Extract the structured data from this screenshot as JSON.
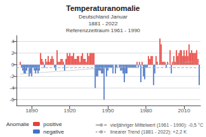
{
  "chart_data": {
    "type": "bar",
    "title": "Temperaturanomalie",
    "subtitle": [
      "Deutschland Januar",
      "1881 - 2022",
      "Referenzzeitraum 1961 - 1990"
    ],
    "legend_title": "Anomalie",
    "legend": "bottom",
    "grid": true,
    "x": [
      1881,
      1882,
      1883,
      1884,
      1885,
      1886,
      1887,
      1888,
      1889,
      1890,
      1891,
      1892,
      1893,
      1894,
      1895,
      1896,
      1897,
      1898,
      1899,
      1900,
      1901,
      1902,
      1903,
      1904,
      1905,
      1906,
      1907,
      1908,
      1909,
      1910,
      1911,
      1912,
      1913,
      1914,
      1915,
      1916,
      1917,
      1918,
      1919,
      1920,
      1921,
      1922,
      1923,
      1924,
      1925,
      1926,
      1927,
      1928,
      1929,
      1930,
      1931,
      1932,
      1933,
      1934,
      1935,
      1936,
      1937,
      1938,
      1939,
      1940,
      1941,
      1942,
      1943,
      1944,
      1945,
      1946,
      1947,
      1948,
      1949,
      1950,
      1951,
      1952,
      1953,
      1954,
      1955,
      1956,
      1957,
      1958,
      1959,
      1960,
      1961,
      1962,
      1963,
      1964,
      1965,
      1966,
      1967,
      1968,
      1969,
      1970,
      1971,
      1972,
      1973,
      1974,
      1975,
      1976,
      1977,
      1978,
      1979,
      1980,
      1981,
      1982,
      1983,
      1984,
      1985,
      1986,
      1987,
      1988,
      1989,
      1990,
      1991,
      1992,
      1993,
      1994,
      1995,
      1996,
      1997,
      1998,
      1999,
      2000,
      2001,
      2002,
      2003,
      2004,
      2005,
      2006,
      2007,
      2008,
      2009,
      2010,
      2011,
      2012,
      2013,
      2014,
      2015,
      2016,
      2017,
      2018,
      2019,
      2020,
      2021,
      2022
    ],
    "series": [
      {
        "name": "positive",
        "type": "bar",
        "color": "#e8413a",
        "values": [
          0.5,
          null,
          null,
          null,
          null,
          null,
          null,
          null,
          null,
          null,
          null,
          null,
          null,
          null,
          null,
          null,
          2.0,
          1.0,
          0.5,
          null,
          1.0,
          0.5,
          1.5,
          0.5,
          1.0,
          1.5,
          1.0,
          null,
          null,
          2.5,
          0.5,
          0.5,
          1.0,
          1.0,
          0.5,
          null,
          1.0,
          2.0,
          1.5,
          2.0,
          1.5,
          1.5,
          2.0,
          1.0,
          1.0,
          1.5,
          1.5,
          0.5,
          1.5,
          2.0,
          1.0,
          1.0,
          0.5,
          2.0,
          1.5,
          2.0,
          2.0,
          2.0,
          2.0,
          null,
          null,
          null,
          null,
          null,
          null,
          null,
          null,
          null,
          null,
          null,
          null,
          null,
          null,
          null,
          0.0,
          null,
          null,
          0.0,
          null,
          null,
          null,
          null,
          null,
          null,
          null,
          null,
          null,
          null,
          null,
          null,
          null,
          null,
          0.5,
          null,
          0.5,
          null,
          0.5,
          null,
          null,
          null,
          null,
          1.5,
          1.0,
          1.5,
          1.5,
          null,
          null,
          1.5,
          0.5,
          0.0,
          4.5,
          3.5,
          0.5,
          0.5,
          0.5,
          null,
          0.5,
          0.0,
          2.5,
          null,
          0.5,
          1.5,
          0.5,
          2.5,
          1.5,
          2.0,
          2.5,
          2.5,
          1.5,
          2.5,
          1.5,
          2.5,
          1.5,
          3.5,
          2.0,
          2.5,
          2.0,
          2.0,
          2.0,
          2.5,
          1.0,
          null
        ]
      },
      {
        "name": "negative",
        "type": "bar",
        "color": "#4472c4",
        "values": [
          null,
          -0.5,
          -1.0,
          -1.5,
          -1.5,
          -1.0,
          -0.5,
          -2.0,
          -1.5,
          -2.0,
          -0.5,
          -1.0,
          -1.5,
          -1.0,
          -1.5,
          -1.0,
          null,
          null,
          null,
          -0.5,
          null,
          null,
          null,
          null,
          null,
          null,
          null,
          -0.5,
          -1.0,
          null,
          null,
          null,
          null,
          null,
          null,
          -1.0,
          null,
          null,
          null,
          null,
          null,
          null,
          null,
          null,
          null,
          null,
          null,
          null,
          null,
          null,
          null,
          null,
          null,
          null,
          null,
          null,
          null,
          null,
          null,
          -4.0,
          -2.0,
          -2.0,
          -1.0,
          -1.0,
          -1.5,
          -1.5,
          -6.0,
          -0.5,
          -2.0,
          -1.0,
          -0.5,
          -0.5,
          -0.5,
          -1.5,
          null,
          -1.5,
          -0.5,
          null,
          -0.5,
          -1.0,
          -1.0,
          -1.5,
          -3.0,
          -1.5,
          -1.5,
          -0.5,
          -0.5,
          -0.5,
          -0.5,
          -0.5,
          -0.5,
          -0.5,
          null,
          -0.5,
          null,
          -3.0,
          null,
          -2.0,
          -2.5,
          -0.5,
          -0.5,
          null,
          null,
          null,
          null,
          -3.5,
          -1.5,
          null,
          null,
          null,
          null,
          null,
          null,
          null,
          null,
          -0.5,
          null,
          null,
          null,
          -1.5,
          null,
          null,
          null,
          null,
          null,
          null,
          null,
          null,
          null,
          null,
          null,
          null,
          null,
          null,
          null,
          null,
          null,
          null,
          null,
          null,
          null,
          -3.5
        ]
      },
      {
        "name": "vieljähriger Mittelwert (1961 - 1990): -0,5 °C",
        "type": "line",
        "color": "#aaaaaa",
        "line_style": "dashed",
        "x": [
          1878,
          2023
        ],
        "values": [
          -0.5,
          -0.5
        ]
      },
      {
        "name": "linearer Trend (1881 - 2022): +2,2 K",
        "type": "line",
        "color": "#aaaaaa",
        "line_style": "dotted",
        "x": [
          1881,
          2022
        ],
        "values": [
          -1.6,
          0.6
        ]
      }
    ],
    "xlim": [
      1878,
      2023
    ],
    "xticks": [
      1890,
      1920,
      1950,
      1980,
      2010
    ],
    "ylim": [
      -7,
      5
    ],
    "yticks": [
      -6,
      -4,
      -2,
      0,
      2,
      4
    ]
  }
}
